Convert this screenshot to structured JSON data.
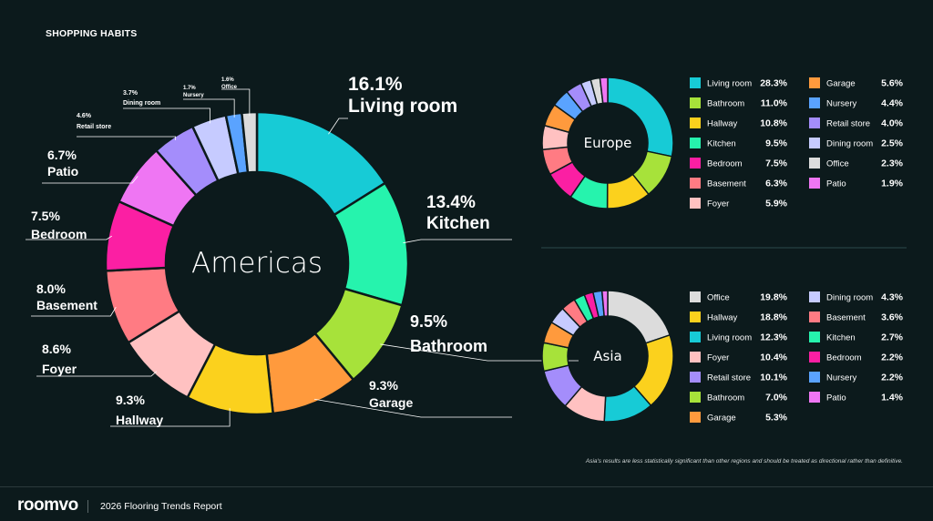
{
  "page_title": "SHOPPING HABITS",
  "footnote": "Asia's results are less statistically significant than other regions and should be treated as directional rather than definitive.",
  "footer": {
    "brand": "roomvo",
    "report_title": "2026 Flooring Trends Report"
  },
  "colors": {
    "background": "#0c1a1c",
    "Living room": "#17cbd6",
    "Kitchen": "#26f3ad",
    "Bathroom": "#a7e23a",
    "Garage": "#ff9a3d",
    "Hallway": "#fbd11d",
    "Foyer": "#ffc1c1",
    "Basement": "#ff7b83",
    "Bedroom": "#fb1fa3",
    "Patio": "#ef76f3",
    "Retail store": "#a48dfb",
    "Dining room": "#c6cbff",
    "Nursery": "#5aa3ff",
    "Office": "#dcdcdc"
  },
  "chart_data": [
    {
      "type": "pie",
      "region": "Americas",
      "center_label": "Americas",
      "slices": [
        {
          "label": "Living room",
          "value": 16.1,
          "display": "16.1%"
        },
        {
          "label": "Kitchen",
          "value": 13.4,
          "display": "13.4%"
        },
        {
          "label": "Bathroom",
          "value": 9.5,
          "display": "9.5%"
        },
        {
          "label": "Garage",
          "value": 9.3,
          "display": "9.3%"
        },
        {
          "label": "Hallway",
          "value": 9.3,
          "display": "9.3%"
        },
        {
          "label": "Foyer",
          "value": 8.6,
          "display": "8.6%"
        },
        {
          "label": "Basement",
          "value": 8.0,
          "display": "8.0%"
        },
        {
          "label": "Bedroom",
          "value": 7.5,
          "display": "7.5%"
        },
        {
          "label": "Patio",
          "value": 6.7,
          "display": "6.7%"
        },
        {
          "label": "Retail store",
          "value": 4.6,
          "display": "4.6%"
        },
        {
          "label": "Dining room",
          "value": 3.7,
          "display": "3.7%"
        },
        {
          "label": "Nursery",
          "value": 1.7,
          "display": "1.7%"
        },
        {
          "label": "Office",
          "value": 1.6,
          "display": "1.6%"
        }
      ]
    },
    {
      "type": "pie",
      "region": "Europe",
      "center_label": "Europe",
      "slices": [
        {
          "label": "Living room",
          "value": 28.3,
          "display": "28.3%"
        },
        {
          "label": "Bathroom",
          "value": 11.0,
          "display": "11.0%"
        },
        {
          "label": "Hallway",
          "value": 10.8,
          "display": "10.8%"
        },
        {
          "label": "Kitchen",
          "value": 9.5,
          "display": "9.5%"
        },
        {
          "label": "Bedroom",
          "value": 7.5,
          "display": "7.5%"
        },
        {
          "label": "Basement",
          "value": 6.3,
          "display": "6.3%"
        },
        {
          "label": "Foyer",
          "value": 5.9,
          "display": "5.9%"
        },
        {
          "label": "Garage",
          "value": 5.6,
          "display": "5.6%"
        },
        {
          "label": "Nursery",
          "value": 4.4,
          "display": "4.4%"
        },
        {
          "label": "Retail store",
          "value": 4.0,
          "display": "4.0%"
        },
        {
          "label": "Dining room",
          "value": 2.5,
          "display": "2.5%"
        },
        {
          "label": "Office",
          "value": 2.3,
          "display": "2.3%"
        },
        {
          "label": "Patio",
          "value": 1.9,
          "display": "1.9%"
        }
      ]
    },
    {
      "type": "pie",
      "region": "Asia",
      "center_label": "Asia",
      "slices": [
        {
          "label": "Office",
          "value": 19.8,
          "display": "19.8%"
        },
        {
          "label": "Hallway",
          "value": 18.8,
          "display": "18.8%"
        },
        {
          "label": "Living room",
          "value": 12.3,
          "display": "12.3%"
        },
        {
          "label": "Foyer",
          "value": 10.4,
          "display": "10.4%"
        },
        {
          "label": "Retail store",
          "value": 10.1,
          "display": "10.1%"
        },
        {
          "label": "Bathroom",
          "value": 7.0,
          "display": "7.0%"
        },
        {
          "label": "Garage",
          "value": 5.3,
          "display": "5.3%"
        },
        {
          "label": "Dining room",
          "value": 4.3,
          "display": "4.3%"
        },
        {
          "label": "Basement",
          "value": 3.6,
          "display": "3.6%"
        },
        {
          "label": "Kitchen",
          "value": 2.7,
          "display": "2.7%"
        },
        {
          "label": "Bedroom",
          "value": 2.2,
          "display": "2.2%"
        },
        {
          "label": "Nursery",
          "value": 2.2,
          "display": "2.2%"
        },
        {
          "label": "Patio",
          "value": 1.4,
          "display": "1.4%"
        }
      ]
    }
  ]
}
